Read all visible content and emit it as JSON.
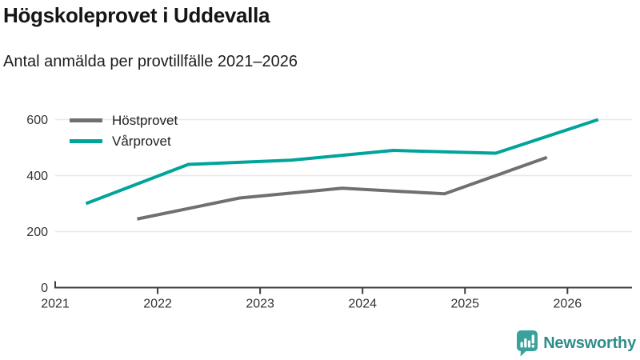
{
  "header": {
    "title": "Högskoleprovet i Uddevalla",
    "subtitle": "Antal anmälda per provtillfälle 2021–2026"
  },
  "chart_data": {
    "type": "line",
    "title": "Högskoleprovet i Uddevalla",
    "subtitle": "Antal anmälda per provtillfälle 2021–2026",
    "xlabel": "",
    "ylabel": "",
    "x_ticks": [
      2021,
      2022,
      2023,
      2024,
      2025,
      2026
    ],
    "y_ticks": [
      0,
      200,
      400,
      600
    ],
    "xlim": [
      2021,
      2026.63
    ],
    "ylim": [
      0,
      620
    ],
    "grid": "horizontal",
    "legend_position": "top-left-inside",
    "series": [
      {
        "name": "Höstprovet",
        "color": "#6e7072",
        "points": [
          {
            "x": 2021.8,
            "y": 245
          },
          {
            "x": 2022.8,
            "y": 320
          },
          {
            "x": 2023.8,
            "y": 355
          },
          {
            "x": 2024.8,
            "y": 335
          },
          {
            "x": 2025.8,
            "y": 465
          }
        ]
      },
      {
        "name": "Vårprovet",
        "color": "#00a49b",
        "points": [
          {
            "x": 2021.3,
            "y": 300
          },
          {
            "x": 2022.3,
            "y": 440
          },
          {
            "x": 2023.3,
            "y": 455
          },
          {
            "x": 2024.3,
            "y": 490
          },
          {
            "x": 2025.3,
            "y": 480
          },
          {
            "x": 2026.3,
            "y": 600
          }
        ]
      }
    ]
  },
  "branding": {
    "logo_text": "Newsworthy",
    "logo_text_color": "#2e8d8b",
    "icon_name": "newsworthy-bubble-chart-icon",
    "icon_color": "#3aa29d"
  },
  "style_colors": {
    "grid": "#e8e8e8",
    "axis": "#3e3e3e",
    "tick_labels": "#333333"
  }
}
